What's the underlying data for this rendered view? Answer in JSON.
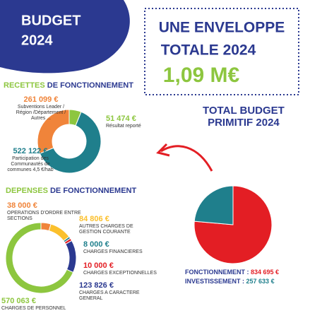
{
  "header": {
    "title": [
      "BUDGET",
      "2024"
    ]
  },
  "box": {
    "lines": [
      "UNE ENVELOPPE",
      "TOTALE 2024"
    ],
    "amount": "1,09 M€"
  },
  "chart_data": [
    {
      "type": "donut",
      "title": [
        "RECETTES",
        "DE FONCTIONNEMENT"
      ],
      "categories": [
        "Subventions Leader / Région /Département / Autres ...",
        "Résultat reporté",
        "Participation des Communautés de communes 4,5 €/hab"
      ],
      "values": [
        261099,
        51474,
        522122
      ],
      "value_labels": [
        "261 099 €",
        "51 474 €",
        "522 122 €"
      ],
      "colors": [
        "#f0843a",
        "#8dc63f",
        "#1f7f8c"
      ]
    },
    {
      "type": "ring",
      "title": [
        "DEPENSES",
        "DE FONCTIONNEMENT"
      ],
      "categories": [
        "OPERATIONS D'ORDRE ENTRE SECTIONS",
        "AUTRES CHARGES DE GESTION COURANTE",
        "CHARGES FINANCIERES",
        "CHARGES EXCEPTIONNELLES",
        "CHARGES A CARACTERE GENERAL",
        "CHARGES DE PERSONNEL"
      ],
      "values": [
        38000,
        84806,
        8000,
        10000,
        123826,
        570063
      ],
      "value_labels": [
        "38 000 €",
        "84 806 €",
        "8 000 €",
        "10 000 €",
        "123 826 €",
        "570 063 €"
      ],
      "colors": [
        "#f0843a",
        "#fbc02d",
        "#1f7f8c",
        "#e31e24",
        "#2b3990",
        "#8dc63f"
      ]
    },
    {
      "type": "pie",
      "title": [
        "TOTAL BUDGET",
        "PRIMITIF 2024"
      ],
      "categories": [
        "FONCTIONNEMENT :",
        "INVESTISSEMENT :"
      ],
      "values": [
        834695,
        257633
      ],
      "value_labels": [
        "834 695 €",
        "257 633 €"
      ],
      "colors": [
        "#e31e24",
        "#1f7f8c"
      ]
    }
  ]
}
